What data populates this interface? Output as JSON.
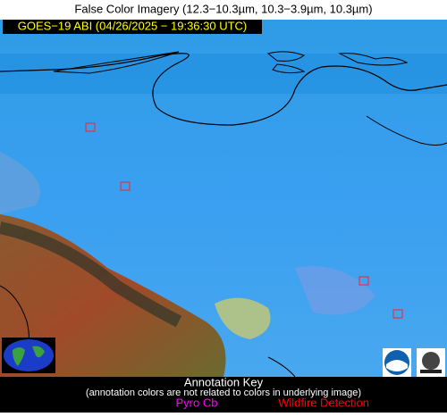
{
  "header": {
    "title": "False Color Imagery (12.3−10.3µm, 10.3−3.9µm, 10.3µm)",
    "subtitle": "GOES−19 ABI (04/26/2025 − 19:36:30 UTC)"
  },
  "annotation_key": {
    "title": "Annotation Key",
    "note": "(annotation colors are not related to colors in underlying image)",
    "items": [
      {
        "label": "Pyro Cb",
        "color": "#ff00ff"
      },
      {
        "label": "Wildfire Detection",
        "color": "#ff0000"
      }
    ]
  }
}
